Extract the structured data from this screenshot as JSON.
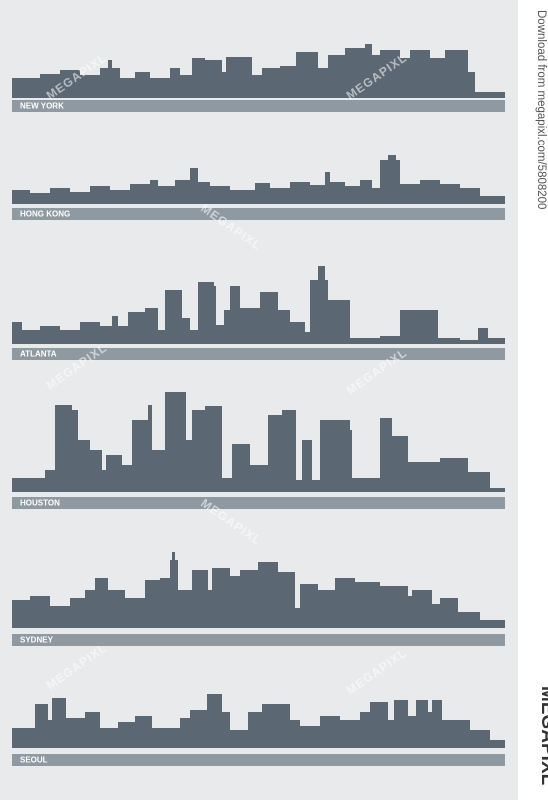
{
  "skylines": [
    {
      "label": "NEW YORK"
    },
    {
      "label": "HONG KONG"
    },
    {
      "label": "ATLANTA"
    },
    {
      "label": "HOUSTON"
    },
    {
      "label": "SYDNEY"
    },
    {
      "label": "SEOUL"
    }
  ],
  "watermark": "MEGAPIXL",
  "sidebar": {
    "download_text": "Download from megapixl.com/5808200",
    "logo": "MEGAPIXL"
  }
}
